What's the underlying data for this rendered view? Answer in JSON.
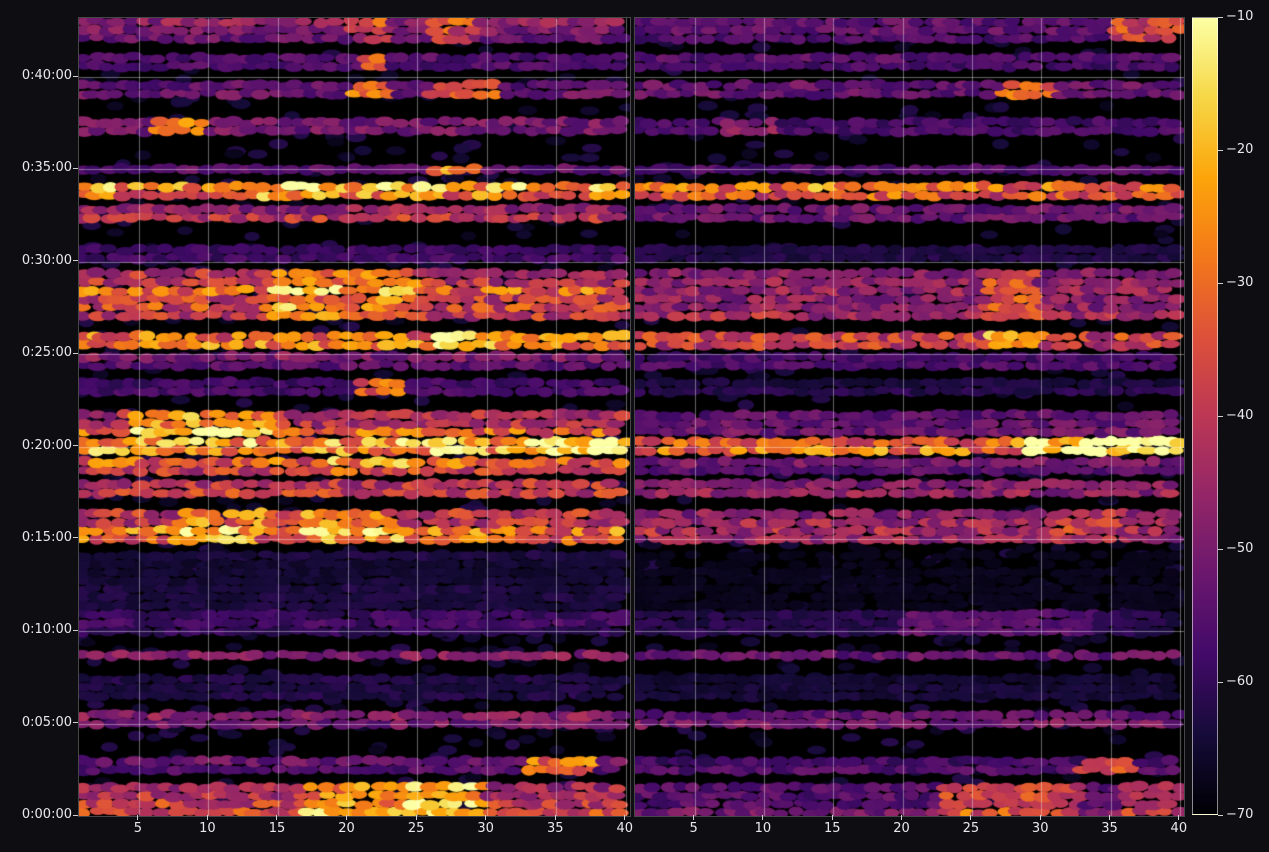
{
  "figure": {
    "bg": "#0d0d12",
    "axes_bg": "#000000",
    "text_color": "#eaeaea",
    "grid_color": "rgba(255,255,255,0.40)"
  },
  "chart_data": {
    "type": "heatmap",
    "title": "",
    "xlabel": "",
    "ylabel": "",
    "panels": [
      {
        "name": "left-spectrogram-panel",
        "x_ticks": [
          "5",
          "10",
          "15",
          "20",
          "25",
          "30",
          "35",
          "40"
        ]
      },
      {
        "name": "right-spectrogram-panel",
        "x_ticks": [
          "5",
          "10",
          "15",
          "20",
          "25",
          "30",
          "35",
          "40"
        ]
      }
    ],
    "x_tick_values": [
      5,
      10,
      15,
      20,
      25,
      30,
      35,
      40
    ],
    "x_range": [
      0.7,
      40.3
    ],
    "y_ticks": [
      "0:00:00",
      "0:05:00",
      "0:10:00",
      "0:15:00",
      "0:20:00",
      "0:25:00",
      "0:30:00",
      "0:35:00",
      "0:40:00"
    ],
    "y_tick_values_min": [
      0,
      5,
      10,
      15,
      20,
      25,
      30,
      35,
      40
    ],
    "y_range_min": [
      0,
      43.2
    ],
    "grid": true,
    "colorbar": {
      "ticks": [
        "−10",
        "−20",
        "−30",
        "−40",
        "−50",
        "−60",
        "−70"
      ],
      "tick_values": [
        -10,
        -20,
        -30,
        -40,
        -50,
        -60,
        -70
      ],
      "vmin": -70,
      "vmax": -10,
      "colormap": "inferno",
      "position": "right"
    },
    "colormap_stops": [
      [
        0,
        0,
        4
      ],
      [
        22,
        11,
        57
      ],
      [
        66,
        10,
        104
      ],
      [
        106,
        23,
        110
      ],
      [
        147,
        38,
        103
      ],
      [
        188,
        55,
        84
      ],
      [
        221,
        81,
        58
      ],
      [
        243,
        120,
        25
      ],
      [
        252,
        165,
        10
      ],
      [
        246,
        215,
        70
      ],
      [
        252,
        255,
        164
      ]
    ],
    "bands": [
      {
        "t0": 0.0,
        "t1": 1.8,
        "left": 0.52,
        "right": 0.3,
        "hot": [
          [
            0,
            17,
            30,
            0.28
          ],
          [
            0,
            24,
            29,
            0.15
          ],
          [
            1,
            23,
            33,
            0.28
          ],
          [
            1,
            36,
            40,
            0.2
          ]
        ]
      },
      {
        "t0": 2.3,
        "t1": 3.1,
        "left": 0.3,
        "right": 0.22,
        "hot": [
          [
            0,
            33,
            38,
            0.42
          ],
          [
            1,
            33,
            37,
            0.33
          ]
        ]
      },
      {
        "t0": 4.8,
        "t1": 5.7,
        "left": 0.34,
        "right": 0.3,
        "hot": []
      },
      {
        "t0": 6.3,
        "t1": 7.8,
        "left": 0.14,
        "right": 0.08,
        "hot": []
      },
      {
        "t0": 8.5,
        "t1": 9.1,
        "left": 0.3,
        "right": 0.27,
        "hot": []
      },
      {
        "t0": 9.8,
        "t1": 10.9,
        "left": 0.2,
        "right": 0.15,
        "hot": [
          [
            1,
            20,
            34,
            0.12
          ]
        ]
      },
      {
        "t0": 11.2,
        "t1": 14.2,
        "left": 0.1,
        "right": 0.04,
        "hot": []
      },
      {
        "t0": 14.8,
        "t1": 16.6,
        "left": 0.58,
        "right": 0.42,
        "hot": [
          [
            0,
            8,
            14,
            0.2
          ],
          [
            0,
            17,
            24,
            0.18
          ],
          [
            1,
            30,
            36,
            0.1
          ]
        ]
      },
      {
        "t0": 17.3,
        "t1": 18.3,
        "left": 0.48,
        "right": 0.33,
        "hot": []
      },
      {
        "t0": 18.5,
        "t1": 19.5,
        "left": 0.55,
        "right": 0.3,
        "hot": [
          [
            0,
            18,
            26,
            0.12
          ]
        ]
      },
      {
        "t0": 19.6,
        "t1": 20.45,
        "left": 0.85,
        "right": 0.62,
        "hot": [
          [
            0,
            26,
            30,
            0.15
          ],
          [
            0,
            34,
            40,
            0.2
          ],
          [
            1,
            29,
            40,
            0.35
          ]
        ]
      },
      {
        "t0": 20.6,
        "t1": 21.9,
        "left": 0.55,
        "right": 0.32,
        "hot": [
          [
            0,
            4,
            15,
            0.3
          ]
        ]
      },
      {
        "t0": 22.8,
        "t1": 23.5,
        "left": 0.22,
        "right": 0.12,
        "hot": [
          [
            0,
            21,
            24,
            0.4
          ]
        ]
      },
      {
        "t0": 24.2,
        "t1": 24.9,
        "left": 0.3,
        "right": 0.24,
        "hot": []
      },
      {
        "t0": 25.3,
        "t1": 26.2,
        "left": 0.62,
        "right": 0.48,
        "hot": [
          [
            0,
            26,
            29,
            0.25
          ],
          [
            1,
            26,
            30,
            0.28
          ]
        ]
      },
      {
        "t0": 26.9,
        "t1": 29.7,
        "left": 0.58,
        "right": 0.38,
        "hot": [
          [
            0,
            14,
            25,
            0.18
          ],
          [
            1,
            26,
            30,
            0.22
          ]
        ]
      },
      {
        "t0": 30.0,
        "t1": 30.7,
        "left": 0.22,
        "right": 0.15,
        "hot": []
      },
      {
        "t0": 32.2,
        "t1": 33.2,
        "left": 0.45,
        "right": 0.33,
        "hot": []
      },
      {
        "t0": 33.4,
        "t1": 34.1,
        "left": 0.68,
        "right": 0.58,
        "hot": [
          [
            0,
            10,
            22,
            0.1
          ],
          [
            1,
            12,
            20,
            0.1
          ]
        ]
      },
      {
        "t0": 34.8,
        "t1": 35.4,
        "left": 0.28,
        "right": 0.2,
        "hot": [
          [
            0,
            26,
            29,
            0.4
          ]
        ]
      },
      {
        "t0": 36.9,
        "t1": 37.8,
        "left": 0.28,
        "right": 0.2,
        "hot": [
          [
            0,
            6,
            10,
            0.32
          ],
          [
            1,
            7,
            11,
            0.15
          ]
        ]
      },
      {
        "t0": 38.9,
        "t1": 39.8,
        "left": 0.33,
        "right": 0.28,
        "hot": [
          [
            0,
            20,
            23,
            0.38
          ],
          [
            0,
            26,
            31,
            0.33
          ],
          [
            1,
            27,
            31,
            0.33
          ]
        ]
      },
      {
        "t0": 40.4,
        "t1": 41.2,
        "left": 0.28,
        "right": 0.22,
        "hot": [
          [
            0,
            21,
            23,
            0.33
          ]
        ]
      },
      {
        "t0": 41.9,
        "t1": 43.2,
        "left": 0.33,
        "right": 0.28,
        "hot": [
          [
            0,
            26,
            29,
            0.28
          ],
          [
            0,
            20,
            23,
            0.18
          ],
          [
            1,
            35,
            40,
            0.3
          ]
        ]
      }
    ]
  }
}
